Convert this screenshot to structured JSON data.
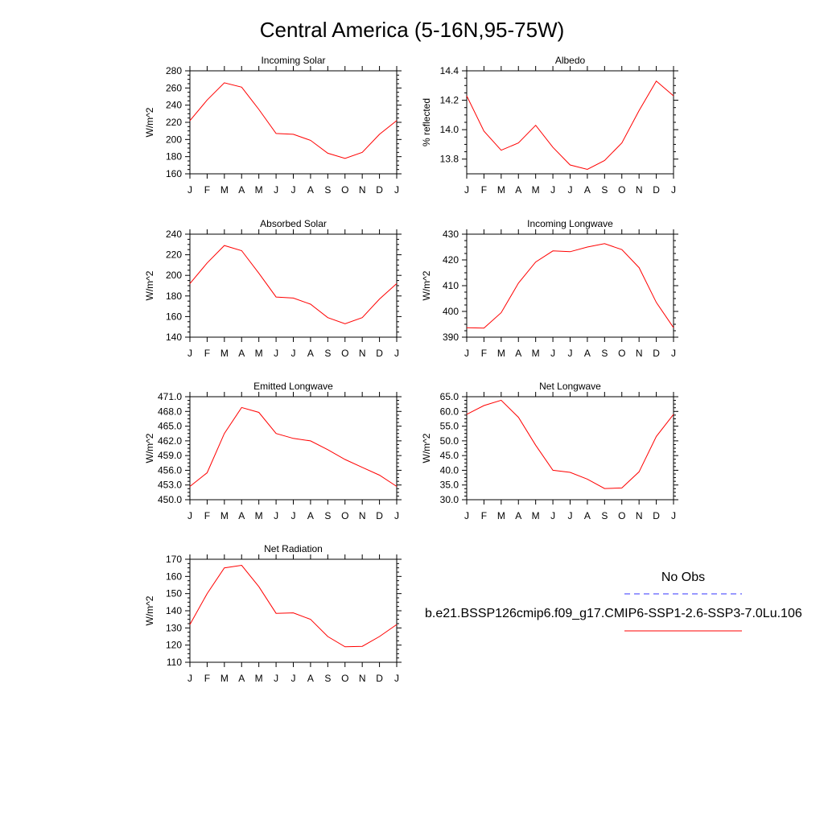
{
  "title": "Central America (5-16N,95-75W)",
  "legend": {
    "obs_label": "No Obs",
    "model_label": "b.e21.BSSP126cmip6.f09_g17.CMIP6-SSP1-2.6-SSP3-7.0Lu.106",
    "obs_color": "#3333ff",
    "model_color": "#ff0000"
  },
  "chart_data": [
    {
      "type": "line",
      "title": "Incoming Solar",
      "ylabel": "W/m^2",
      "xlabel": "",
      "categories": [
        "J",
        "F",
        "M",
        "A",
        "M",
        "J",
        "J",
        "A",
        "S",
        "O",
        "N",
        "D",
        "J"
      ],
      "ylim": [
        160,
        280
      ],
      "yticks": [
        "160",
        "180",
        "200",
        "220",
        "240",
        "260",
        "280"
      ],
      "grid": false,
      "series": [
        {
          "values": [
            222,
            246,
            266,
            261,
            235,
            207,
            206,
            199,
            184,
            178,
            185,
            206,
            222
          ],
          "color": "#ff0000"
        }
      ]
    },
    {
      "type": "line",
      "title": "Albedo",
      "ylabel": "% reflected",
      "xlabel": "",
      "categories": [
        "J",
        "F",
        "M",
        "A",
        "M",
        "J",
        "J",
        "A",
        "S",
        "O",
        "N",
        "D",
        "J"
      ],
      "ylim": [
        13.7,
        14.4
      ],
      "yticks": [
        "13.8",
        "14.0",
        "14.2",
        "14.4"
      ],
      "grid": false,
      "series": [
        {
          "values": [
            14.23,
            13.99,
            13.86,
            13.91,
            14.03,
            13.88,
            13.76,
            13.73,
            13.79,
            13.91,
            14.13,
            14.33,
            14.23
          ],
          "color": "#ff0000"
        }
      ]
    },
    {
      "type": "line",
      "title": "Absorbed Solar",
      "ylabel": "W/m^2",
      "xlabel": "",
      "categories": [
        "J",
        "F",
        "M",
        "A",
        "M",
        "J",
        "J",
        "A",
        "S",
        "O",
        "N",
        "D",
        "J"
      ],
      "ylim": [
        140,
        240
      ],
      "yticks": [
        "140",
        "160",
        "180",
        "200",
        "220",
        "240"
      ],
      "grid": false,
      "series": [
        {
          "values": [
            192,
            212,
            229,
            224,
            202,
            179,
            178,
            172,
            159,
            153,
            159,
            177,
            192
          ],
          "color": "#ff0000"
        }
      ]
    },
    {
      "type": "line",
      "title": "Incoming Longwave",
      "ylabel": "W/m^2",
      "xlabel": "",
      "categories": [
        "J",
        "F",
        "M",
        "A",
        "M",
        "J",
        "J",
        "A",
        "S",
        "O",
        "N",
        "D",
        "J"
      ],
      "ylim": [
        390,
        430
      ],
      "yticks": [
        "390",
        "400",
        "410",
        "420",
        "430"
      ],
      "grid": false,
      "series": [
        {
          "values": [
            393.7,
            393.5,
            399.5,
            411.0,
            419.2,
            423.5,
            423.2,
            425.0,
            426.3,
            424.0,
            417.0,
            403.5,
            393.7
          ],
          "color": "#ff0000"
        }
      ]
    },
    {
      "type": "line",
      "title": "Emitted Longwave",
      "ylabel": "W/m^2",
      "xlabel": "",
      "categories": [
        "J",
        "F",
        "M",
        "A",
        "M",
        "J",
        "J",
        "A",
        "S",
        "O",
        "N",
        "D",
        "J"
      ],
      "ylim": [
        450.0,
        471.0
      ],
      "yticks": [
        "450.0",
        "453.0",
        "456.0",
        "459.0",
        "462.0",
        "465.0",
        "468.0",
        "471.0"
      ],
      "grid": false,
      "series": [
        {
          "values": [
            452.7,
            455.5,
            463.5,
            468.8,
            467.8,
            463.5,
            462.5,
            462.0,
            460.2,
            458.2,
            456.6,
            455.0,
            452.7
          ],
          "color": "#ff0000"
        }
      ]
    },
    {
      "type": "line",
      "title": "Net Longwave",
      "ylabel": "W/m^2",
      "xlabel": "",
      "categories": [
        "J",
        "F",
        "M",
        "A",
        "M",
        "J",
        "J",
        "A",
        "S",
        "O",
        "N",
        "D",
        "J"
      ],
      "ylim": [
        30.0,
        65.0
      ],
      "yticks": [
        "30.0",
        "35.0",
        "40.0",
        "45.0",
        "50.0",
        "55.0",
        "60.0",
        "65.0"
      ],
      "grid": false,
      "series": [
        {
          "values": [
            59.0,
            62.0,
            63.8,
            58.0,
            48.5,
            40.0,
            39.3,
            37.0,
            33.8,
            34.0,
            39.5,
            51.5,
            59.0
          ],
          "color": "#ff0000"
        }
      ]
    },
    {
      "type": "line",
      "title": "Net Radiation",
      "ylabel": "W/m^2",
      "xlabel": "",
      "categories": [
        "J",
        "F",
        "M",
        "A",
        "M",
        "J",
        "J",
        "A",
        "S",
        "O",
        "N",
        "D",
        "J"
      ],
      "ylim": [
        110,
        170
      ],
      "yticks": [
        "110",
        "120",
        "130",
        "140",
        "150",
        "160",
        "170"
      ],
      "grid": false,
      "series": [
        {
          "values": [
            132,
            150,
            165,
            166.5,
            154,
            138.5,
            138.8,
            135,
            125,
            119,
            119.3,
            125,
            132
          ],
          "color": "#ff0000"
        }
      ]
    }
  ]
}
